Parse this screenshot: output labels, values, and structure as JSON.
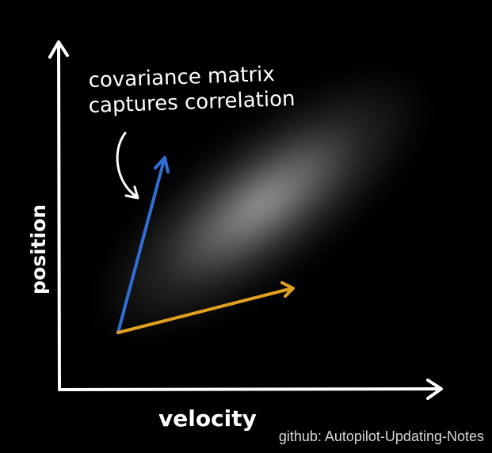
{
  "annotation": {
    "line1": "covariance matrix",
    "line2": "captures correlation"
  },
  "axes": {
    "x_label": "velocity",
    "y_label": "position"
  },
  "watermark": "github: Autopilot-Updating-Notes",
  "colors": {
    "background": "#000000",
    "axis": "#ffffff",
    "blob": "#ffffff",
    "eigenvector_major": "#2f6fd6",
    "eigenvector_minor": "#e0a020"
  }
}
